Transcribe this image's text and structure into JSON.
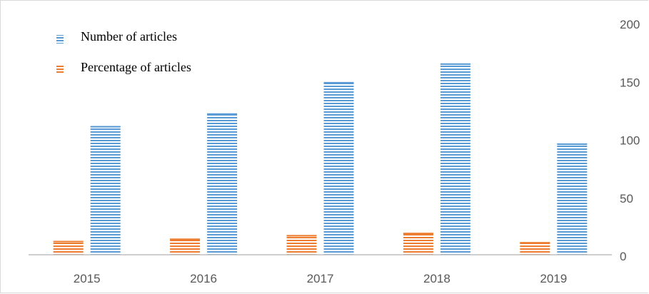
{
  "chart_data": {
    "type": "bar",
    "categories": [
      "2015",
      "2016",
      "2017",
      "2018",
      "2019"
    ],
    "series": [
      {
        "name": "Percentage of articles",
        "values": [
          12,
          14,
          17,
          19,
          11
        ],
        "color": "#ED7D31"
      },
      {
        "name": "Number of articles",
        "values": [
          111,
          122,
          149,
          165,
          96
        ],
        "color": "#5B9BD5"
      }
    ],
    "legend_order": [
      "Number of articles",
      "Percentage of articles"
    ],
    "y_ticks": [
      "0",
      "50",
      "100",
      "150",
      "200"
    ],
    "ylim": [
      0,
      200
    ],
    "y_axis_position": "right",
    "legend_position": "top-left",
    "grid": false,
    "bar_pattern": "horizontal-stripes"
  }
}
